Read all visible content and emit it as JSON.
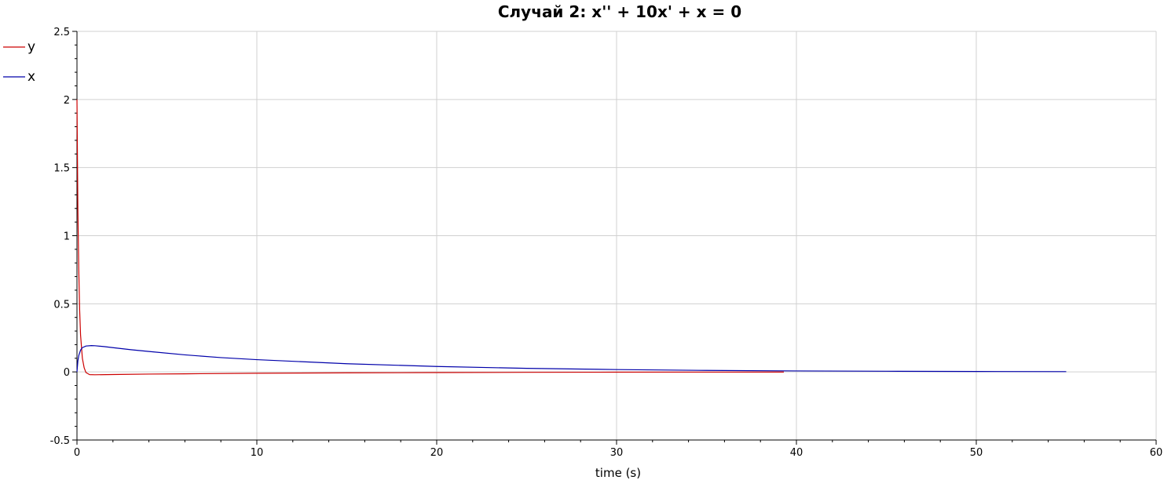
{
  "chart_data": {
    "type": "line",
    "title": "Случай 2: x'' + 10x' + x = 0",
    "xlabel": "time (s)",
    "ylabel": "",
    "xlim": [
      0,
      60
    ],
    "ylim": [
      -0.5,
      2.5
    ],
    "x_ticks": [
      0,
      10,
      20,
      30,
      40,
      50,
      60
    ],
    "y_ticks": [
      -0.5,
      0,
      0.5,
      1,
      1.5,
      2,
      2.5
    ],
    "x_tick_labels": [
      "0",
      "10",
      "20",
      "30",
      "40",
      "50",
      "60"
    ],
    "y_tick_labels": [
      "-0.5",
      "0",
      "0.5",
      "1",
      "1.5",
      "2",
      "2.5"
    ],
    "grid": true,
    "legend_position": "top-left",
    "series": [
      {
        "name": "y",
        "color": "#cc0000",
        "x": [
          0,
          0.05,
          0.1,
          0.15,
          0.2,
          0.3,
          0.4,
          0.5,
          0.7,
          1,
          2,
          4,
          6,
          10,
          15,
          20,
          25,
          30,
          35,
          39.3
        ],
        "y": [
          2.0,
          1.2,
          0.75,
          0.45,
          0.27,
          0.1,
          0.03,
          -0.005,
          -0.02,
          -0.021,
          -0.019,
          -0.016,
          -0.014,
          -0.01,
          -0.007,
          -0.005,
          -0.003,
          -0.002,
          -0.0015,
          -0.001
        ]
      },
      {
        "name": "x",
        "color": "#0000aa",
        "x": [
          0,
          0.05,
          0.1,
          0.2,
          0.3,
          0.5,
          0.8,
          1.0,
          1.5,
          2,
          3,
          4,
          6,
          8,
          10,
          15,
          20,
          25,
          30,
          35,
          40,
          45,
          50,
          55
        ],
        "y": [
          0,
          0.08,
          0.12,
          0.16,
          0.178,
          0.19,
          0.193,
          0.192,
          0.186,
          0.178,
          0.163,
          0.15,
          0.125,
          0.105,
          0.09,
          0.06,
          0.04,
          0.026,
          0.017,
          0.011,
          0.007,
          0.005,
          0.003,
          0.002
        ]
      }
    ]
  }
}
